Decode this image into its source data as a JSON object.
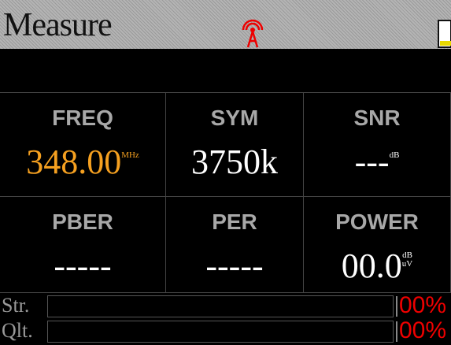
{
  "header": {
    "title": "Measure"
  },
  "cells": [
    {
      "label": "FREQ",
      "value": "348.00",
      "unit": "MHz"
    },
    {
      "label": "SYM",
      "value": "3750k"
    },
    {
      "label": "SNR",
      "value": "---",
      "unit": "dB"
    },
    {
      "label": "PBER",
      "value": "-----"
    },
    {
      "label": "PER",
      "value": "-----"
    },
    {
      "label": "POWER",
      "value": "00.0",
      "unit": "dB",
      "unit2": "uV"
    }
  ],
  "meters": [
    {
      "label": "Str.",
      "value": "00%"
    },
    {
      "label": "Qlt.",
      "value": "00%"
    }
  ]
}
